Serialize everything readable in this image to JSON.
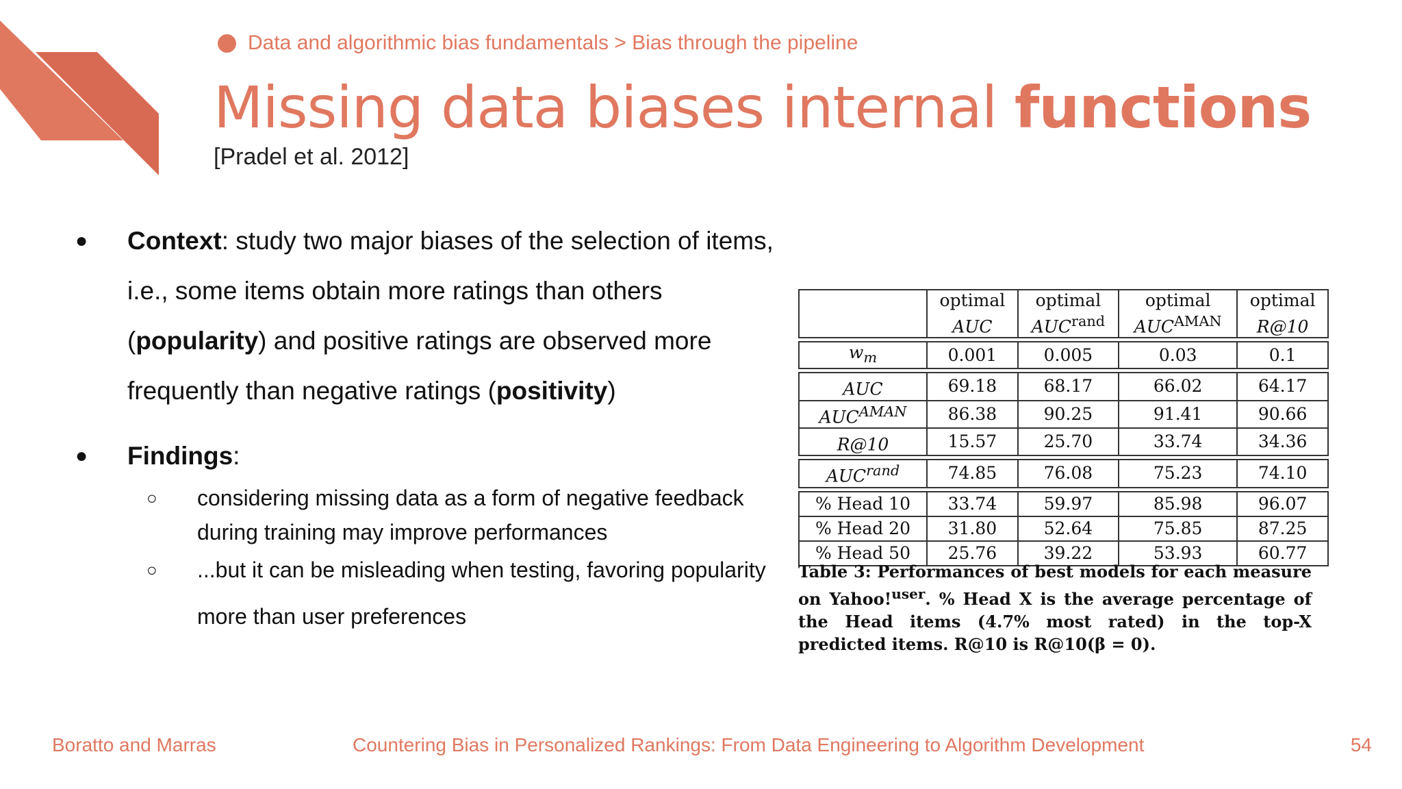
{
  "breadcrumb": "Data and algorithmic bias fundamentals > Bias through the pipeline",
  "title": {
    "regular": "Missing data biases internal ",
    "bold": "functions"
  },
  "citation": "[Pradel et al. 2012]",
  "bullets": [
    {
      "bold": "Context",
      "parts": [
        ": study two major biases of the selection of items, i.e., some items obtain more ratings than others (",
        "popularity",
        ") and positive ratings are observed more frequently than negative ratings (",
        "positivity",
        ")"
      ]
    },
    {
      "bold": "Findings",
      "suffix": ":",
      "sub": [
        "considering missing data as a form of negative feedback during training may improve performances",
        "...but it can be misleading when testing, favoring popularity more than user preferences"
      ]
    }
  ],
  "table": {
    "header": [
      {
        "top": "optimal",
        "bottom": "AUC",
        "sup": ""
      },
      {
        "top": "optimal",
        "bottom": "AUC",
        "sup": "rand"
      },
      {
        "top": "optimal",
        "bottom": "AUC",
        "sup": "AMAN"
      },
      {
        "top": "optimal",
        "bottom": "R@10",
        "sup": ""
      }
    ],
    "wm": {
      "label": "w",
      "sub": "m",
      "values": [
        "0.001",
        "0.005",
        "0.03",
        "0.1"
      ]
    },
    "metrics": [
      {
        "label": "AUC",
        "sup": "",
        "values": [
          "69.18",
          "68.17",
          "66.02",
          "64.17"
        ]
      },
      {
        "label": "AUC",
        "sup": "AMAN",
        "values": [
          "86.38",
          "90.25",
          "91.41",
          "90.66"
        ]
      },
      {
        "label": "R@10",
        "sup": "",
        "values": [
          "15.57",
          "25.70",
          "33.74",
          "34.36"
        ]
      }
    ],
    "rand": {
      "label": "AUC",
      "sup": "rand",
      "values": [
        "74.85",
        "76.08",
        "75.23",
        "74.10"
      ]
    },
    "heads": [
      {
        "label": "% Head 10",
        "values": [
          "33.74",
          "59.97",
          "85.98",
          "96.07"
        ]
      },
      {
        "label": "% Head 20",
        "values": [
          "31.80",
          "52.64",
          "75.85",
          "87.25"
        ]
      },
      {
        "label": "% Head 50",
        "values": [
          "25.76",
          "39.22",
          "53.93",
          "60.77"
        ]
      }
    ]
  },
  "caption": {
    "a": "Table 3: Performances of best models for each measure on Yahoo!",
    "sup": "user",
    "b": ". % Head X is the average percentage of the Head items (4.7% most rated) in the top-X predicted items. R@10 is R@10(β = 0)."
  },
  "footer": {
    "authors": "Boratto and Marras",
    "course": "Countering Bias in Personalized Rankings: From Data Engineering to Algorithm Development",
    "page": "54"
  },
  "colors": {
    "accent": "#e07860",
    "accent_dark": "#d86a54"
  }
}
